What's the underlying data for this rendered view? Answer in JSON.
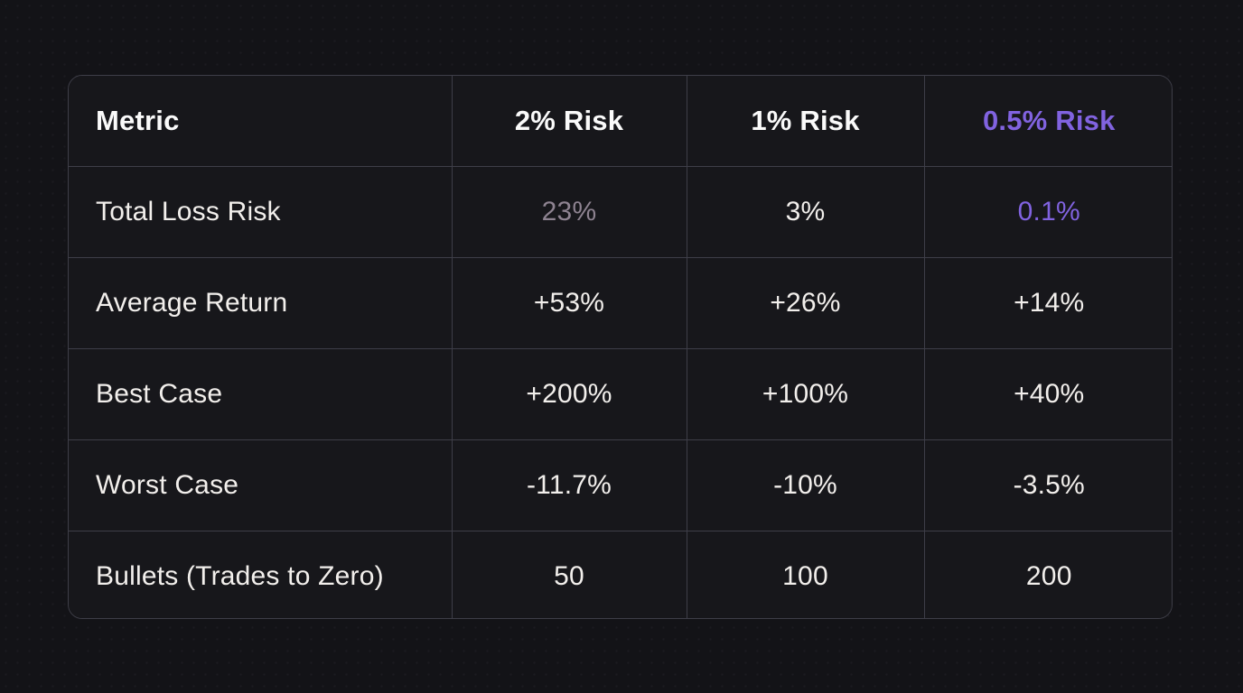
{
  "theme": {
    "page_background": "#131317",
    "cell_background": "#17171b",
    "border_color": "#3e3e48",
    "header_text_color": "#fafafa",
    "body_text_color": "#f2efec",
    "muted_value_color": "#8e8391",
    "accent_purple": "#8163e0"
  },
  "table": {
    "columns": [
      {
        "label": "Metric"
      },
      {
        "label": "2% Risk"
      },
      {
        "label": "1% Risk"
      },
      {
        "label": "0.5% Risk"
      }
    ],
    "rows": [
      {
        "metric": "Total Loss Risk",
        "values": [
          "23%",
          "3%",
          "0.1%"
        ]
      },
      {
        "metric": "Average Return",
        "values": [
          "+53%",
          "+26%",
          "+14%"
        ]
      },
      {
        "metric": "Best Case",
        "values": [
          "+200%",
          "+100%",
          "+40%"
        ]
      },
      {
        "metric": "Worst Case",
        "values": [
          "-11.7%",
          "-10%",
          "-3.5%"
        ]
      },
      {
        "metric": "Bullets (Trades to Zero)",
        "values": [
          "50",
          "100",
          "200"
        ]
      }
    ]
  }
}
